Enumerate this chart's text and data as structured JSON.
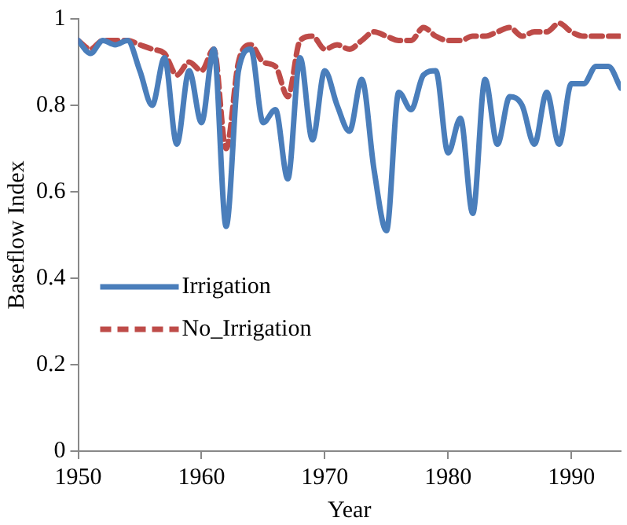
{
  "chart_data": {
    "type": "line",
    "xlabel": "Year",
    "ylabel": "Baseflow Index",
    "x": [
      1950,
      1951,
      1952,
      1953,
      1954,
      1955,
      1956,
      1957,
      1958,
      1959,
      1960,
      1961,
      1962,
      1963,
      1964,
      1965,
      1966,
      1967,
      1968,
      1969,
      1970,
      1971,
      1972,
      1973,
      1974,
      1975,
      1976,
      1977,
      1978,
      1979,
      1980,
      1981,
      1982,
      1983,
      1984,
      1985,
      1986,
      1987,
      1988,
      1989,
      1990,
      1991,
      1992,
      1993,
      1994
    ],
    "series": [
      {
        "name": "Irrigation",
        "color": "#4a7ebb",
        "line_style": "solid",
        "values": [
          0.95,
          0.92,
          0.95,
          0.94,
          0.95,
          0.88,
          0.8,
          0.91,
          0.71,
          0.88,
          0.76,
          0.93,
          0.52,
          0.88,
          0.93,
          0.76,
          0.79,
          0.63,
          0.91,
          0.72,
          0.88,
          0.8,
          0.74,
          0.86,
          0.65,
          0.51,
          0.83,
          0.79,
          0.87,
          0.88,
          0.69,
          0.77,
          0.55,
          0.86,
          0.71,
          0.82,
          0.8,
          0.71,
          0.83,
          0.71,
          0.85,
          0.85,
          0.89,
          0.89,
          0.84
        ]
      },
      {
        "name": "No_Irrigation",
        "color": "#be4b48",
        "line_style": "dashed",
        "values": [
          0.95,
          0.93,
          0.95,
          0.95,
          0.95,
          0.94,
          0.93,
          0.92,
          0.87,
          0.9,
          0.88,
          0.93,
          0.7,
          0.9,
          0.94,
          0.9,
          0.89,
          0.82,
          0.95,
          0.96,
          0.93,
          0.94,
          0.93,
          0.95,
          0.97,
          0.96,
          0.95,
          0.95,
          0.98,
          0.96,
          0.95,
          0.95,
          0.96,
          0.96,
          0.97,
          0.98,
          0.96,
          0.97,
          0.97,
          0.99,
          0.97,
          0.96,
          0.96,
          0.96,
          0.96
        ]
      }
    ],
    "xlim": [
      1950,
      1994
    ],
    "xticks": [
      1950,
      1960,
      1970,
      1980,
      1990
    ],
    "ylim": [
      0,
      1
    ],
    "yticks": [
      0,
      0.2,
      0.4,
      0.6,
      0.8,
      1
    ],
    "grid": false,
    "legend": "left",
    "marker": "none"
  }
}
